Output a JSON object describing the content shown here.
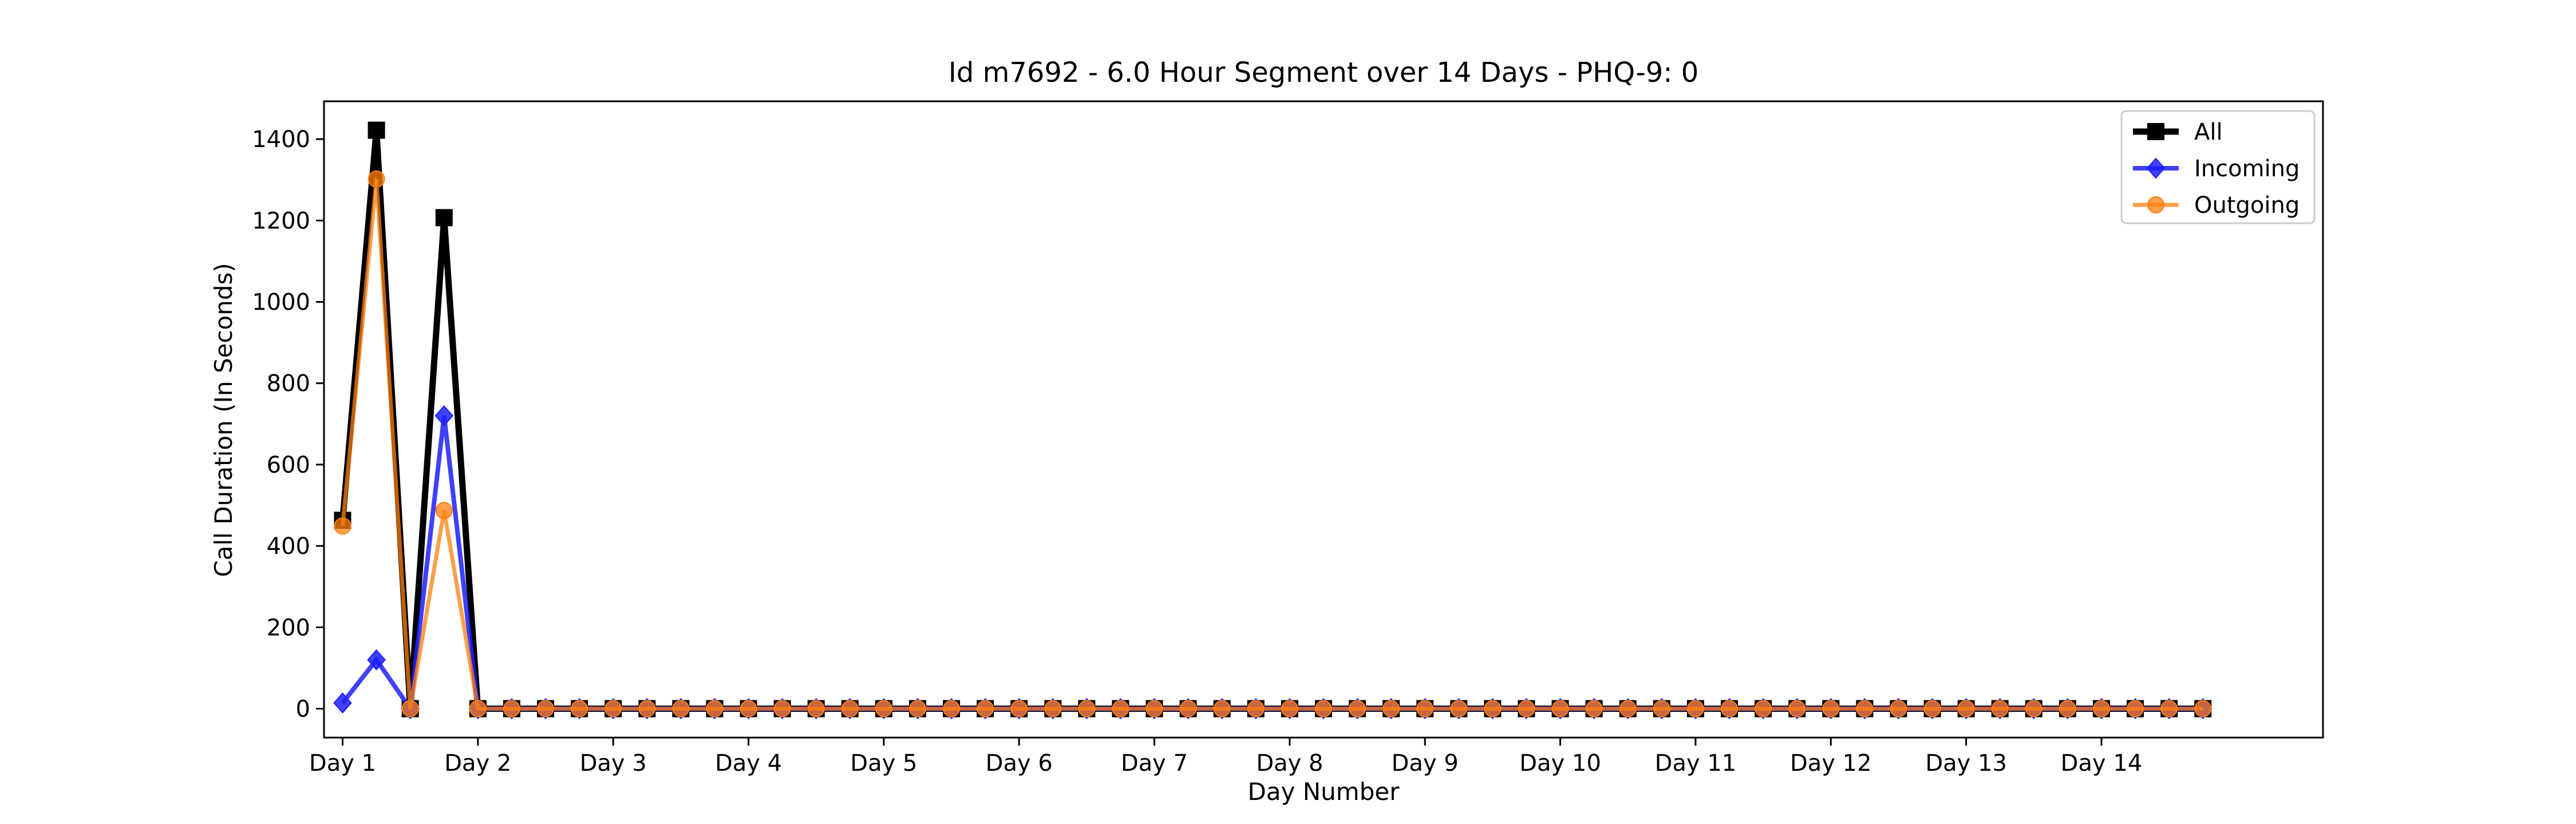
{
  "chart_data": {
    "type": "line",
    "title": "Id m7692 - 6.0 Hour Segment over 14 Days - PHQ-9: 0",
    "xlabel": "Day Number",
    "ylabel": "Call Duration (In Seconds)",
    "xlim": [
      -0.55,
      58.55
    ],
    "ylim": [
      -71.1,
      1493.1
    ],
    "x_ticks": [
      0,
      4,
      8,
      12,
      16,
      20,
      24,
      28,
      32,
      36,
      40,
      44,
      48,
      52
    ],
    "x_tick_labels": [
      "Day 1",
      "Day 2",
      "Day 3",
      "Day 4",
      "Day 5",
      "Day 6",
      "Day 7",
      "Day 8",
      "Day 9",
      "Day 10",
      "Day 11",
      "Day 12",
      "Day 13",
      "Day 14"
    ],
    "y_ticks": [
      0,
      200,
      400,
      600,
      800,
      1000,
      1200,
      1400
    ],
    "y_tick_labels": [
      "0",
      "200",
      "400",
      "600",
      "800",
      "1000",
      "1200",
      "1400"
    ],
    "grid": false,
    "legend_position": "top-right",
    "x": [
      0,
      1,
      2,
      3,
      4,
      5,
      6,
      7,
      8,
      9,
      10,
      11,
      12,
      13,
      14,
      15,
      16,
      17,
      18,
      19,
      20,
      21,
      22,
      23,
      24,
      25,
      26,
      27,
      28,
      29,
      30,
      31,
      32,
      33,
      34,
      35,
      36,
      37,
      38,
      39,
      40,
      41,
      42,
      43,
      44,
      45,
      46,
      47,
      48,
      49,
      50,
      51,
      52,
      53,
      54,
      55
    ],
    "series": [
      {
        "name": "All",
        "color": "#000000",
        "marker": "square",
        "values": [
          463,
          1422,
          0,
          1207,
          0,
          0,
          0,
          0,
          0,
          0,
          0,
          0,
          0,
          0,
          0,
          0,
          0,
          0,
          0,
          0,
          0,
          0,
          0,
          0,
          0,
          0,
          0,
          0,
          0,
          0,
          0,
          0,
          0,
          0,
          0,
          0,
          0,
          0,
          0,
          0,
          0,
          0,
          0,
          0,
          0,
          0,
          0,
          0,
          0,
          0,
          0,
          0,
          0,
          0,
          0,
          0
        ]
      },
      {
        "name": "Incoming",
        "color": "#1f1fff",
        "marker": "diamond",
        "values": [
          14,
          120,
          0,
          720,
          0,
          0,
          0,
          0,
          0,
          0,
          0,
          0,
          0,
          0,
          0,
          0,
          0,
          0,
          0,
          0,
          0,
          0,
          0,
          0,
          0,
          0,
          0,
          0,
          0,
          0,
          0,
          0,
          0,
          0,
          0,
          0,
          0,
          0,
          0,
          0,
          0,
          0,
          0,
          0,
          0,
          0,
          0,
          0,
          0,
          0,
          0,
          0,
          0,
          0,
          0,
          0
        ]
      },
      {
        "name": "Outgoing",
        "color": "#ff7f0e",
        "marker": "circle",
        "values": [
          449,
          1302,
          0,
          487,
          0,
          0,
          0,
          0,
          0,
          0,
          0,
          0,
          0,
          0,
          0,
          0,
          0,
          0,
          0,
          0,
          0,
          0,
          0,
          0,
          0,
          0,
          0,
          0,
          0,
          0,
          0,
          0,
          0,
          0,
          0,
          0,
          0,
          0,
          0,
          0,
          0,
          0,
          0,
          0,
          0,
          0,
          0,
          0,
          0,
          0,
          0,
          0,
          0,
          0,
          0,
          0
        ]
      }
    ]
  }
}
